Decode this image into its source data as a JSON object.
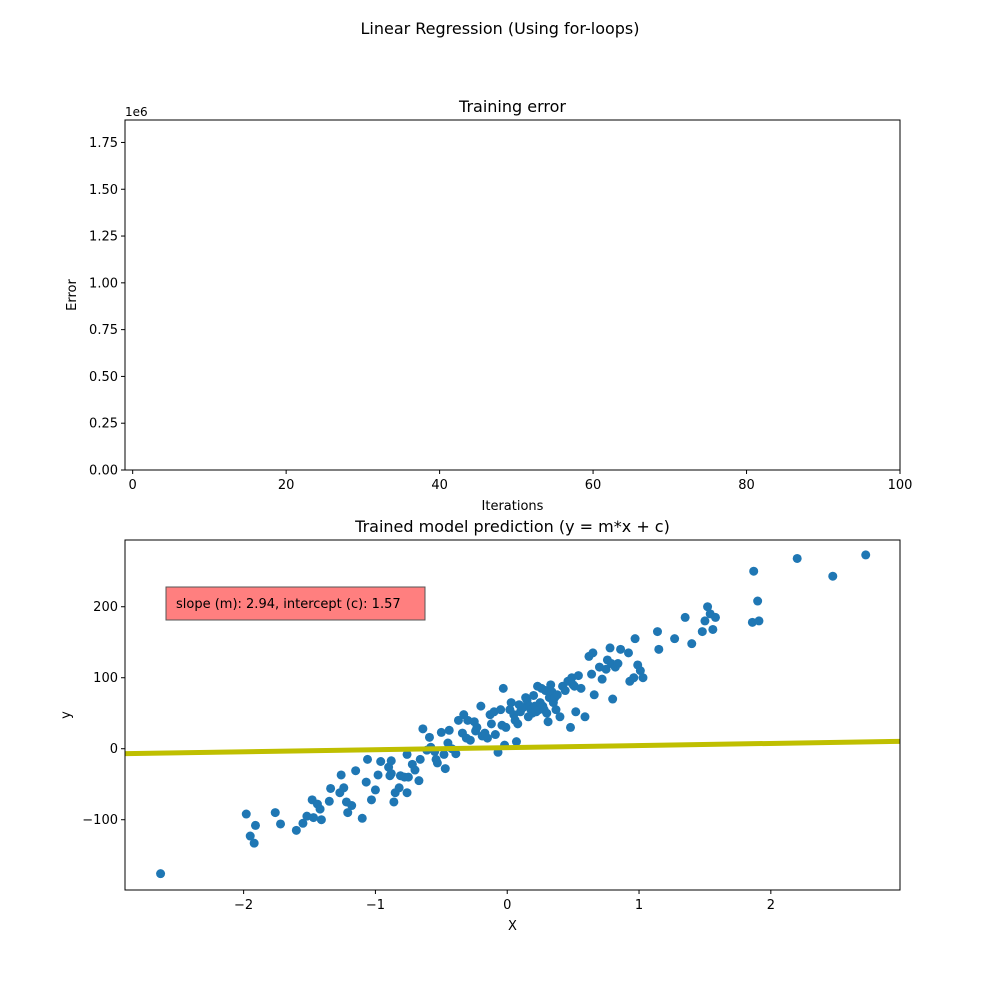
{
  "figure": {
    "suptitle": "Linear Regression (Using for-loops)"
  },
  "colors": {
    "scatter": "#1f77b4",
    "fit_line": "#bfbf00",
    "annotation_box": "#ff7f7f"
  },
  "chart_data": [
    {
      "type": "line",
      "title": "Training error",
      "xlabel": "Iterations",
      "ylabel": "Error",
      "y_offset_label": "1e6",
      "xlim": [
        -1,
        100
      ],
      "ylim": [
        0,
        1.87
      ],
      "xticks": [
        0,
        20,
        40,
        60,
        80,
        100
      ],
      "xtick_labels": [
        "0",
        "20",
        "40",
        "60",
        "80",
        "100"
      ],
      "yticks": [
        0,
        0.25,
        0.5,
        0.75,
        1.0,
        1.25,
        1.5,
        1.75
      ],
      "ytick_labels": [
        "0.00",
        "0.25",
        "0.50",
        "0.75",
        "1.00",
        "1.25",
        "1.50",
        "1.75"
      ],
      "series": [
        {
          "x": [],
          "y": []
        }
      ],
      "grid": false
    },
    {
      "type": "scatter",
      "title": "Trained model prediction (y = m*x + c)",
      "xlabel": "X",
      "ylabel": "y",
      "xlim": [
        -2.9,
        2.98
      ],
      "ylim": [
        -199,
        294
      ],
      "xticks": [
        -2,
        -1,
        0,
        1,
        2
      ],
      "xtick_labels": [
        "−2",
        "−1",
        "0",
        "1",
        "2"
      ],
      "yticks": [
        -100,
        0,
        100,
        200
      ],
      "ytick_labels": [
        "−100",
        "0",
        "100",
        "200"
      ],
      "annotation": "slope (m): 2.94, intercept (c): 1.57",
      "fit_line": {
        "slope": 2.94,
        "intercept": 1.57
      },
      "points": [
        [
          -2.63,
          -176
        ],
        [
          -1.98,
          -92
        ],
        [
          -1.95,
          -123
        ],
        [
          -1.92,
          -133
        ],
        [
          -1.91,
          -108
        ],
        [
          -1.76,
          -90
        ],
        [
          -1.72,
          -106
        ],
        [
          -1.6,
          -115
        ],
        [
          -1.55,
          -105
        ],
        [
          -1.52,
          -95
        ],
        [
          -1.48,
          -72
        ],
        [
          -1.47,
          -97
        ],
        [
          -1.44,
          -78
        ],
        [
          -1.42,
          -85
        ],
        [
          -1.41,
          -100
        ],
        [
          -1.35,
          -74
        ],
        [
          -1.34,
          -56
        ],
        [
          -1.27,
          -62
        ],
        [
          -1.26,
          -37
        ],
        [
          -1.24,
          -55
        ],
        [
          -1.22,
          -75
        ],
        [
          -1.21,
          -90
        ],
        [
          -1.18,
          -80
        ],
        [
          -1.15,
          -31
        ],
        [
          -1.1,
          -98
        ],
        [
          -1.07,
          -47
        ],
        [
          -1.06,
          -15
        ],
        [
          -1.03,
          -72
        ],
        [
          -1.0,
          -58
        ],
        [
          -0.98,
          -37
        ],
        [
          -0.96,
          -18
        ],
        [
          -0.9,
          -26
        ],
        [
          -0.89,
          -38
        ],
        [
          -0.88,
          -35
        ],
        [
          -0.88,
          -17
        ],
        [
          -0.86,
          -75
        ],
        [
          -0.85,
          -62
        ],
        [
          -0.82,
          -55
        ],
        [
          -0.81,
          -38
        ],
        [
          -0.78,
          -40
        ],
        [
          -0.76,
          -8
        ],
        [
          -0.76,
          -62
        ],
        [
          -0.75,
          -40
        ],
        [
          -0.72,
          -22
        ],
        [
          -0.7,
          -30
        ],
        [
          -0.67,
          -45
        ],
        [
          -0.66,
          -15
        ],
        [
          -0.64,
          28
        ],
        [
          -0.61,
          -2
        ],
        [
          -0.59,
          16
        ],
        [
          -0.58,
          2
        ],
        [
          -0.55,
          -4
        ],
        [
          -0.54,
          -15
        ],
        [
          -0.53,
          -20
        ],
        [
          -0.5,
          23
        ],
        [
          -0.48,
          -8
        ],
        [
          -0.47,
          -28
        ],
        [
          -0.45,
          8
        ],
        [
          -0.44,
          26
        ],
        [
          -0.42,
          0
        ],
        [
          -0.39,
          -7
        ],
        [
          -0.37,
          40
        ],
        [
          -0.34,
          22
        ],
        [
          -0.33,
          48
        ],
        [
          -0.31,
          15
        ],
        [
          -0.3,
          40
        ],
        [
          -0.28,
          12
        ],
        [
          -0.25,
          38
        ],
        [
          -0.24,
          25
        ],
        [
          -0.23,
          30
        ],
        [
          -0.2,
          60
        ],
        [
          -0.19,
          18
        ],
        [
          -0.17,
          22
        ],
        [
          -0.15,
          15
        ],
        [
          -0.13,
          48
        ],
        [
          -0.12,
          35
        ],
        [
          -0.1,
          52
        ],
        [
          -0.09,
          20
        ],
        [
          -0.07,
          -5
        ],
        [
          -0.05,
          55
        ],
        [
          -0.04,
          33
        ],
        [
          -0.03,
          85
        ],
        [
          -0.02,
          5
        ],
        [
          -0.01,
          30
        ],
        [
          0.02,
          55
        ],
        [
          0.03,
          65
        ],
        [
          0.05,
          48
        ],
        [
          0.06,
          40
        ],
        [
          0.07,
          10
        ],
        [
          0.08,
          35
        ],
        [
          0.09,
          62
        ],
        [
          0.1,
          52
        ],
        [
          0.12,
          58
        ],
        [
          0.14,
          72
        ],
        [
          0.15,
          68
        ],
        [
          0.16,
          45
        ],
        [
          0.17,
          60
        ],
        [
          0.18,
          55
        ],
        [
          0.19,
          50
        ],
        [
          0.2,
          75
        ],
        [
          0.21,
          60
        ],
        [
          0.22,
          52
        ],
        [
          0.23,
          88
        ],
        [
          0.24,
          55
        ],
        [
          0.25,
          65
        ],
        [
          0.26,
          85
        ],
        [
          0.27,
          60
        ],
        [
          0.28,
          55
        ],
        [
          0.29,
          82
        ],
        [
          0.3,
          50
        ],
        [
          0.31,
          38
        ],
        [
          0.32,
          72
        ],
        [
          0.33,
          90
        ],
        [
          0.34,
          80
        ],
        [
          0.35,
          65
        ],
        [
          0.36,
          72
        ],
        [
          0.37,
          55
        ],
        [
          0.38,
          76
        ],
        [
          0.4,
          45
        ],
        [
          0.42,
          88
        ],
        [
          0.44,
          82
        ],
        [
          0.46,
          95
        ],
        [
          0.48,
          30
        ],
        [
          0.49,
          100
        ],
        [
          0.5,
          90
        ],
        [
          0.51,
          88
        ],
        [
          0.52,
          52
        ],
        [
          0.54,
          103
        ],
        [
          0.56,
          85
        ],
        [
          0.59,
          45
        ],
        [
          0.62,
          130
        ],
        [
          0.64,
          105
        ],
        [
          0.65,
          135
        ],
        [
          0.66,
          76
        ],
        [
          0.7,
          115
        ],
        [
          0.72,
          98
        ],
        [
          0.75,
          112
        ],
        [
          0.76,
          125
        ],
        [
          0.78,
          142
        ],
        [
          0.79,
          120
        ],
        [
          0.8,
          70
        ],
        [
          0.82,
          115
        ],
        [
          0.84,
          120
        ],
        [
          0.86,
          140
        ],
        [
          0.92,
          135
        ],
        [
          0.93,
          95
        ],
        [
          0.96,
          100
        ],
        [
          0.97,
          155
        ],
        [
          0.99,
          118
        ],
        [
          1.01,
          110
        ],
        [
          1.03,
          100
        ],
        [
          1.14,
          165
        ],
        [
          1.15,
          140
        ],
        [
          1.27,
          155
        ],
        [
          1.35,
          185
        ],
        [
          1.4,
          148
        ],
        [
          1.48,
          165
        ],
        [
          1.5,
          180
        ],
        [
          1.52,
          200
        ],
        [
          1.54,
          190
        ],
        [
          1.56,
          168
        ],
        [
          1.58,
          185
        ],
        [
          1.86,
          178
        ],
        [
          1.87,
          250
        ],
        [
          1.9,
          208
        ],
        [
          1.91,
          180
        ],
        [
          2.2,
          268
        ],
        [
          2.47,
          243
        ],
        [
          2.72,
          273
        ]
      ]
    }
  ]
}
